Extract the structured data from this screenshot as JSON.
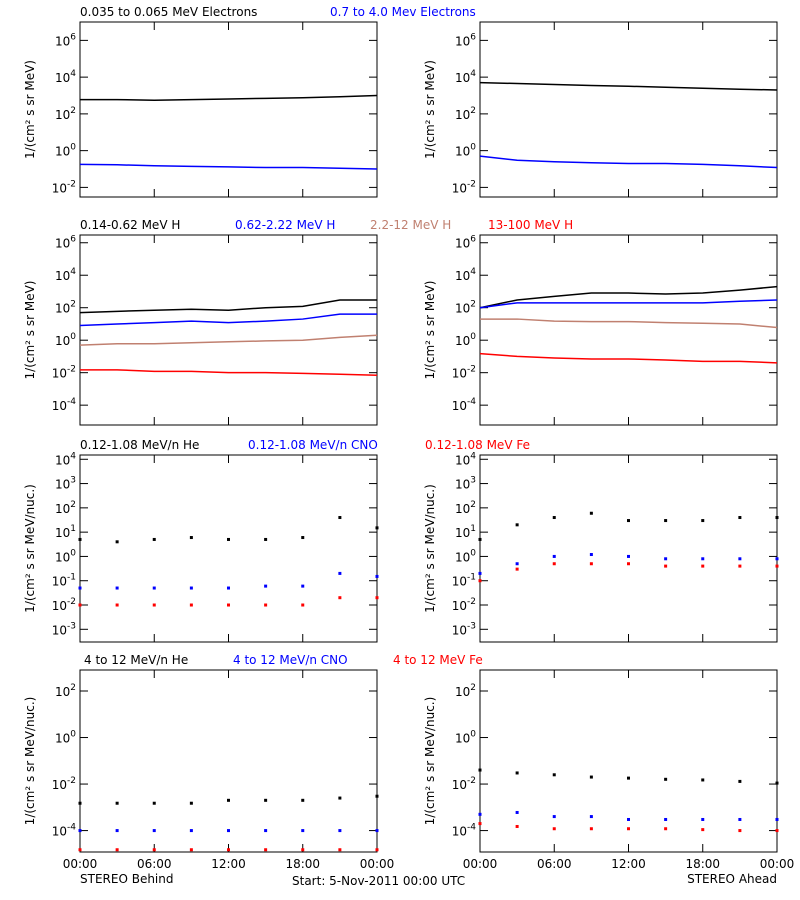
{
  "caption": "Start:  5-Nov-2011 00:00 UTC",
  "chart_data": [
    {
      "type": "line",
      "ylabel": "1/(cm² s sr MeV)",
      "log_y": true,
      "x": [
        0,
        3,
        6,
        9,
        12,
        15,
        18,
        21,
        24
      ],
      "xlim": [
        0,
        24
      ],
      "xticks": [
        0,
        6,
        12,
        18,
        24
      ],
      "ylim": [
        0.003,
        10000000
      ],
      "yticks": [
        {
          "value": 0.01,
          "label": "10^-2"
        },
        {
          "value": 1,
          "label": "10^0"
        },
        {
          "value": 100,
          "label": "10^2"
        },
        {
          "value": 10000,
          "label": "10^4"
        },
        {
          "value": 1000000,
          "label": "10^6"
        }
      ],
      "series": [
        {
          "name": "0.035 to 0.065 MeV Electrons",
          "color": "#000000",
          "values": [
            600,
            600,
            550,
            600,
            650,
            700,
            750,
            850,
            1000
          ]
        },
        {
          "name": "0.7 to 4.0 Mev Electrons",
          "color": "#0000ff",
          "values": [
            0.18,
            0.17,
            0.15,
            0.14,
            0.13,
            0.12,
            0.12,
            0.11,
            0.1
          ]
        }
      ]
    },
    {
      "type": "line",
      "ylabel": "1/(cm² s sr MeV)",
      "log_y": true,
      "x": [
        0,
        3,
        6,
        9,
        12,
        15,
        18,
        21,
        24
      ],
      "xlim": [
        0,
        24
      ],
      "xticks": [
        0,
        6,
        12,
        18,
        24
      ],
      "ylim": [
        0.003,
        10000000
      ],
      "yticks": [
        {
          "value": 0.01,
          "label": "10^-2"
        },
        {
          "value": 1,
          "label": "10^0"
        },
        {
          "value": 100,
          "label": "10^2"
        },
        {
          "value": 10000,
          "label": "10^4"
        },
        {
          "value": 1000000,
          "label": "10^6"
        }
      ],
      "series": [
        {
          "color": "#000000",
          "values": [
            5000,
            4500,
            4000,
            3500,
            3200,
            2800,
            2500,
            2200,
            2000
          ]
        },
        {
          "color": "#0000ff",
          "values": [
            0.5,
            0.3,
            0.25,
            0.22,
            0.2,
            0.2,
            0.18,
            0.15,
            0.12
          ]
        }
      ]
    },
    {
      "type": "line",
      "ylabel": "1/(cm² s sr MeV)",
      "log_y": true,
      "x": [
        0,
        3,
        6,
        9,
        12,
        15,
        18,
        21,
        24
      ],
      "xlim": [
        0,
        24
      ],
      "xticks": [
        0,
        6,
        12,
        18,
        24
      ],
      "ylim": [
        6e-06,
        3000000
      ],
      "yticks": [
        {
          "value": 0.0001,
          "label": "10^-4"
        },
        {
          "value": 0.01,
          "label": "10^-2"
        },
        {
          "value": 1,
          "label": "10^0"
        },
        {
          "value": 100,
          "label": "10^2"
        },
        {
          "value": 10000,
          "label": "10^4"
        },
        {
          "value": 1000000,
          "label": "10^6"
        }
      ],
      "series": [
        {
          "name": "0.14-0.62 MeV H",
          "color": "#000000",
          "values": [
            50,
            60,
            70,
            80,
            70,
            100,
            120,
            300,
            300
          ]
        },
        {
          "name": "0.62-2.22 MeV H",
          "color": "#0000ff",
          "values": [
            8,
            10,
            12,
            15,
            12,
            15,
            20,
            40,
            40
          ]
        },
        {
          "name": "2.2-12 MeV H",
          "color": "#c08070",
          "values": [
            0.5,
            0.6,
            0.6,
            0.7,
            0.8,
            0.9,
            1,
            1.5,
            2
          ]
        },
        {
          "name": "13-100 MeV H",
          "color": "#ff0000",
          "values": [
            0.015,
            0.015,
            0.012,
            0.012,
            0.01,
            0.01,
            0.009,
            0.008,
            0.007
          ]
        }
      ]
    },
    {
      "type": "line",
      "ylabel": "1/(cm² s sr MeV)",
      "log_y": true,
      "x": [
        0,
        3,
        6,
        9,
        12,
        15,
        18,
        21,
        24
      ],
      "xlim": [
        0,
        24
      ],
      "xticks": [
        0,
        6,
        12,
        18,
        24
      ],
      "ylim": [
        6e-06,
        3000000
      ],
      "yticks": [
        {
          "value": 0.0001,
          "label": "10^-4"
        },
        {
          "value": 0.01,
          "label": "10^-2"
        },
        {
          "value": 1,
          "label": "10^0"
        },
        {
          "value": 100,
          "label": "10^2"
        },
        {
          "value": 10000,
          "label": "10^4"
        },
        {
          "value": 1000000,
          "label": "10^6"
        }
      ],
      "series": [
        {
          "color": "#000000",
          "values": [
            100,
            300,
            500,
            800,
            800,
            700,
            800,
            1200,
            2000
          ]
        },
        {
          "color": "#0000ff",
          "values": [
            100,
            200,
            200,
            200,
            200,
            200,
            200,
            250,
            300
          ]
        },
        {
          "color": "#c08070",
          "values": [
            20,
            20,
            15,
            14,
            14,
            12,
            11,
            10,
            6
          ]
        },
        {
          "color": "#ff0000",
          "values": [
            0.15,
            0.1,
            0.08,
            0.07,
            0.07,
            0.06,
            0.05,
            0.05,
            0.04
          ]
        }
      ]
    },
    {
      "type": "scatter",
      "ylabel": "1/(cm² s sr MeV/nuc.)",
      "log_y": true,
      "x": [
        0,
        3,
        6,
        9,
        12,
        15,
        18,
        21,
        24
      ],
      "xlim": [
        0,
        24
      ],
      "xticks": [
        0,
        6,
        12,
        18,
        24
      ],
      "ylim": [
        0.0003,
        15000
      ],
      "yticks": [
        {
          "value": 0.001,
          "label": "10^-3"
        },
        {
          "value": 0.01,
          "label": "10^-2"
        },
        {
          "value": 0.1,
          "label": "10^-1"
        },
        {
          "value": 1,
          "label": "10^0"
        },
        {
          "value": 10,
          "label": "10^1"
        },
        {
          "value": 100,
          "label": "10^2"
        },
        {
          "value": 1000,
          "label": "10^3"
        },
        {
          "value": 10000,
          "label": "10^4"
        }
      ],
      "series": [
        {
          "name": "0.12-1.08 MeV/n He",
          "color": "#000000",
          "values": [
            5,
            4,
            5,
            6,
            5,
            5,
            6,
            40,
            15
          ]
        },
        {
          "name": "0.12-1.08 MeV/n CNO",
          "color": "#0000ff",
          "values": [
            0.05,
            0.05,
            0.05,
            0.05,
            0.05,
            0.06,
            0.06,
            0.2,
            0.15
          ]
        },
        {
          "name": "0.12-1.08 MeV Fe",
          "color": "#ff0000",
          "values": [
            0.01,
            0.01,
            0.01,
            0.01,
            0.01,
            0.01,
            0.01,
            0.02,
            0.02
          ]
        }
      ]
    },
    {
      "type": "scatter",
      "ylabel": "1/(cm² s sr MeV/nuc.)",
      "log_y": true,
      "x": [
        0,
        3,
        6,
        9,
        12,
        15,
        18,
        21,
        24
      ],
      "xlim": [
        0,
        24
      ],
      "xticks": [
        0,
        6,
        12,
        18,
        24
      ],
      "ylim": [
        0.0003,
        15000
      ],
      "yticks": [
        {
          "value": 0.001,
          "label": "10^-3"
        },
        {
          "value": 0.01,
          "label": "10^-2"
        },
        {
          "value": 0.1,
          "label": "10^-1"
        },
        {
          "value": 1,
          "label": "10^0"
        },
        {
          "value": 10,
          "label": "10^1"
        },
        {
          "value": 100,
          "label": "10^2"
        },
        {
          "value": 1000,
          "label": "10^3"
        },
        {
          "value": 10000,
          "label": "10^4"
        }
      ],
      "series": [
        {
          "color": "#000000",
          "values": [
            5,
            20,
            40,
            60,
            30,
            30,
            30,
            40,
            40
          ]
        },
        {
          "color": "#0000ff",
          "values": [
            0.2,
            0.5,
            1,
            1.2,
            1,
            0.8,
            0.8,
            0.8,
            0.8
          ]
        },
        {
          "color": "#ff0000",
          "values": [
            0.1,
            0.3,
            0.5,
            0.5,
            0.5,
            0.4,
            0.4,
            0.4,
            0.4
          ]
        }
      ]
    },
    {
      "type": "scatter",
      "ylabel": "1/(cm² s sr MeV/nuc.)",
      "xlabel": "STEREO Behind",
      "log_y": true,
      "x": [
        0,
        3,
        6,
        9,
        12,
        15,
        18,
        21,
        24
      ],
      "xlim": [
        0,
        24
      ],
      "xticks": [
        {
          "value": 0,
          "label": "00:00"
        },
        {
          "value": 6,
          "label": "06:00"
        },
        {
          "value": 12,
          "label": "12:00"
        },
        {
          "value": 18,
          "label": "18:00"
        },
        {
          "value": 24,
          "label": "00:00"
        }
      ],
      "ylim": [
        1.2e-05,
        800
      ],
      "yticks": [
        {
          "value": 0.0001,
          "label": "10^-4"
        },
        {
          "value": 0.01,
          "label": "10^-2"
        },
        {
          "value": 1,
          "label": "10^0"
        },
        {
          "value": 100,
          "label": "10^2"
        }
      ],
      "series": [
        {
          "name": "4 to 12 MeV/n He",
          "color": "#000000",
          "values": [
            0.0015,
            0.0015,
            0.0015,
            0.0015,
            0.002,
            0.002,
            0.002,
            0.0025,
            0.003
          ]
        },
        {
          "name": "4 to 12 MeV/n CNO",
          "color": "#0000ff",
          "values": [
            0.0001,
            0.0001,
            0.0001,
            0.0001,
            0.0001,
            0.0001,
            0.0001,
            0.0001,
            0.0001
          ]
        },
        {
          "name": "4 to 12 MeV Fe",
          "color": "#ff0000",
          "values": [
            1.5e-05,
            1.5e-05,
            1.5e-05,
            1.5e-05,
            1.5e-05,
            1.5e-05,
            1.5e-05,
            1.5e-05,
            1.5e-05
          ]
        }
      ]
    },
    {
      "type": "scatter",
      "ylabel": "1/(cm² s sr MeV/nuc.)",
      "xlabel": "STEREO Ahead",
      "log_y": true,
      "x": [
        0,
        3,
        6,
        9,
        12,
        15,
        18,
        21,
        24
      ],
      "xlim": [
        0,
        24
      ],
      "xticks": [
        {
          "value": 0,
          "label": "00:00"
        },
        {
          "value": 6,
          "label": "06:00"
        },
        {
          "value": 12,
          "label": "12:00"
        },
        {
          "value": 18,
          "label": "18:00"
        },
        {
          "value": 24,
          "label": "00:00"
        }
      ],
      "ylim": [
        1.2e-05,
        800
      ],
      "yticks": [
        {
          "value": 0.0001,
          "label": "10^-4"
        },
        {
          "value": 0.01,
          "label": "10^-2"
        },
        {
          "value": 1,
          "label": "10^0"
        },
        {
          "value": 100,
          "label": "10^2"
        }
      ],
      "series": [
        {
          "color": "#000000",
          "values": [
            0.04,
            0.03,
            0.025,
            0.02,
            0.018,
            0.016,
            0.015,
            0.013,
            0.011
          ]
        },
        {
          "color": "#0000ff",
          "values": [
            0.0005,
            0.0006,
            0.0004,
            0.0004,
            0.0003,
            0.0003,
            0.0003,
            0.0003,
            0.0003
          ]
        },
        {
          "color": "#ff0000",
          "values": [
            0.0002,
            0.00015,
            0.00012,
            0.00012,
            0.00012,
            0.00012,
            0.00011,
            0.0001,
            0.0001
          ]
        }
      ]
    }
  ]
}
